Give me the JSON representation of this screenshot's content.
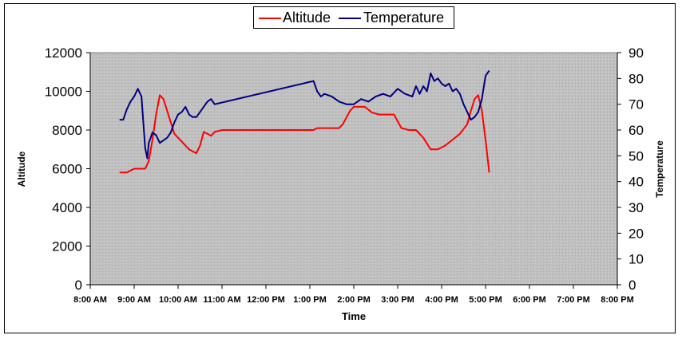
{
  "chart_data": {
    "type": "line",
    "title": "",
    "xlabel": "Time",
    "ylabel": "Altitude",
    "y2label": "Temperature",
    "x_range_hours": [
      8,
      20
    ],
    "x_tick_labels": [
      "8:00 AM",
      "9:00 AM",
      "10:00 AM",
      "11:00 AM",
      "12:00 PM",
      "1:00 PM",
      "2:00 PM",
      "3:00 PM",
      "4:00 PM",
      "5:00 PM",
      "6:00 PM",
      "7:00 PM",
      "8:00 PM"
    ],
    "ylim": [
      0,
      12000
    ],
    "y_ticks": [
      "0",
      "2000",
      "4000",
      "6000",
      "8000",
      "10000",
      "12000"
    ],
    "y2lim": [
      0,
      90
    ],
    "y2_ticks": [
      "0",
      "10",
      "20",
      "30",
      "40",
      "50",
      "60",
      "70",
      "80",
      "90"
    ],
    "plot_background": "#c0c0c0",
    "legend_position": "top-center",
    "series": [
      {
        "name": "Altitude",
        "axis": "left",
        "color": "#ff0000",
        "x": [
          "8:40 AM",
          "8:50 AM",
          "9:00 AM",
          "9:10 AM",
          "9:15 AM",
          "9:20 AM",
          "9:25 AM",
          "9:30 AM",
          "9:35 AM",
          "9:40 AM",
          "9:45 AM",
          "9:50 AM",
          "9:55 AM",
          "10:00 AM",
          "10:05 AM",
          "10:10 AM",
          "10:15 AM",
          "10:20 AM",
          "10:25 AM",
          "10:30 AM",
          "10:35 AM",
          "10:40 AM",
          "10:45 AM",
          "10:50 AM",
          "11:00 AM",
          "12:00 PM",
          "1:05 PM",
          "1:10 PM",
          "1:40 PM",
          "1:45 PM",
          "1:55 PM",
          "2:00 PM",
          "2:15 PM",
          "2:25 PM",
          "2:35 PM",
          "2:45 PM",
          "2:55 PM",
          "3:05 PM",
          "3:15 PM",
          "3:25 PM",
          "3:35 PM",
          "3:45 PM",
          "3:55 PM",
          "4:05 PM",
          "4:15 PM",
          "4:25 PM",
          "4:35 PM",
          "4:40 PM",
          "4:45 PM",
          "4:50 PM",
          "4:55 PM",
          "5:00 PM",
          "5:05 PM"
        ],
        "y": [
          5800,
          5800,
          6000,
          6000,
          6000,
          6400,
          7500,
          8800,
          9800,
          9600,
          9000,
          8400,
          7800,
          7600,
          7400,
          7200,
          7000,
          6900,
          6800,
          7200,
          7900,
          7800,
          7700,
          7900,
          8000,
          8000,
          8000,
          8100,
          8100,
          8300,
          9000,
          9200,
          9200,
          8900,
          8800,
          8800,
          8800,
          8100,
          8000,
          8000,
          7600,
          7000,
          7000,
          7200,
          7500,
          7800,
          8300,
          9000,
          9600,
          9800,
          9000,
          7500,
          5800
        ]
      },
      {
        "name": "Temperature",
        "axis": "right",
        "color": "#000080",
        "x": [
          "8:40 AM",
          "8:45 AM",
          "8:50 AM",
          "8:55 AM",
          "9:00 AM",
          "9:05 AM",
          "9:10 AM",
          "9:12 AM",
          "9:15 AM",
          "9:18 AM",
          "9:20 AM",
          "9:25 AM",
          "9:30 AM",
          "9:35 AM",
          "9:40 AM",
          "9:45 AM",
          "9:50 AM",
          "9:55 AM",
          "10:00 AM",
          "10:05 AM",
          "10:10 AM",
          "10:15 AM",
          "10:20 AM",
          "10:25 AM",
          "10:30 AM",
          "10:35 AM",
          "10:40 AM",
          "10:45 AM",
          "10:50 AM",
          "1:05 PM",
          "1:10 PM",
          "1:15 PM",
          "1:20 PM",
          "1:30 PM",
          "1:40 PM",
          "1:50 PM",
          "2:00 PM",
          "2:10 PM",
          "2:20 PM",
          "2:30 PM",
          "2:40 PM",
          "2:50 PM",
          "3:00 PM",
          "3:10 PM",
          "3:20 PM",
          "3:25 PM",
          "3:30 PM",
          "3:35 PM",
          "3:40 PM",
          "3:45 PM",
          "3:50 PM",
          "3:55 PM",
          "4:00 PM",
          "4:05 PM",
          "4:10 PM",
          "4:15 PM",
          "4:20 PM",
          "4:25 PM",
          "4:30 PM",
          "4:35 PM",
          "4:40 PM",
          "4:45 PM",
          "4:50 PM",
          "4:55 PM",
          "5:00 PM",
          "5:05 PM"
        ],
        "y": [
          64,
          64,
          68,
          71,
          73,
          76,
          73,
          65,
          53,
          49,
          55,
          59,
          58,
          55,
          56,
          57,
          59,
          63,
          66,
          67,
          69,
          66,
          65,
          65,
          67,
          69,
          71,
          72,
          70,
          79,
          75,
          73,
          74,
          73,
          71,
          70,
          70,
          72,
          71,
          73,
          74,
          73,
          76,
          74,
          73,
          77,
          74,
          77,
          75,
          82,
          79,
          80,
          78,
          77,
          78,
          75,
          76,
          74,
          70,
          67,
          64,
          65,
          67,
          72,
          81,
          83
        ]
      }
    ]
  }
}
